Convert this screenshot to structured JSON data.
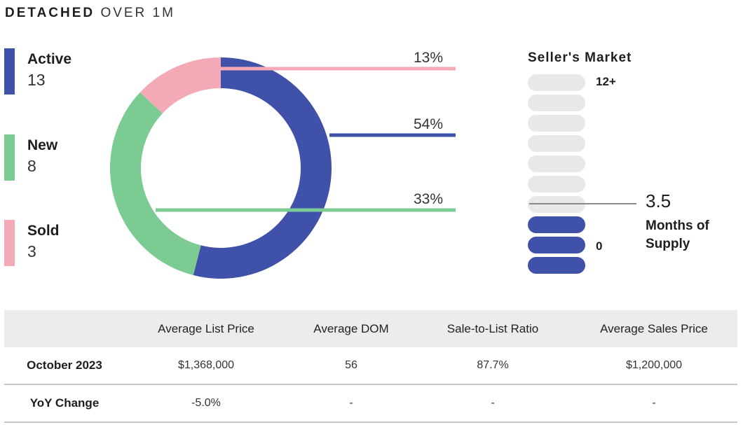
{
  "title": {
    "bold": "DETACHED",
    "light": "OVER 1M"
  },
  "legend": [
    {
      "label": "Active",
      "value": "13",
      "color": "#3f51a8"
    },
    {
      "label": "New",
      "value": "8",
      "color": "#7ccb93"
    },
    {
      "label": "Sold",
      "value": "3",
      "color": "#f4a9b6"
    }
  ],
  "chart_data": {
    "type": "pie",
    "style": "donut",
    "categories": [
      "Sold",
      "Active",
      "New"
    ],
    "values": [
      13,
      54,
      33
    ],
    "labels": [
      "13%",
      "54%",
      "33%"
    ],
    "colors": [
      "#f4a9b6",
      "#3f51a8",
      "#7ccb93"
    ]
  },
  "market": {
    "title": "Seller's Market",
    "max_label": "12+",
    "min_label": "0",
    "value": "3.5",
    "value_label_line1": "Months of",
    "value_label_line2": "Supply",
    "total_segments": 10,
    "filled_segments": 3
  },
  "table": {
    "headers": [
      "",
      "Average List Price",
      "Average DOM",
      "Sale-to-List Ratio",
      "Average Sales Price"
    ],
    "rows": [
      [
        "October 2023",
        "$1,368,000",
        "56",
        "87.7%",
        "$1,200,000"
      ],
      [
        "YoY Change",
        "-5.0%",
        "-",
        "-",
        "-"
      ]
    ]
  }
}
